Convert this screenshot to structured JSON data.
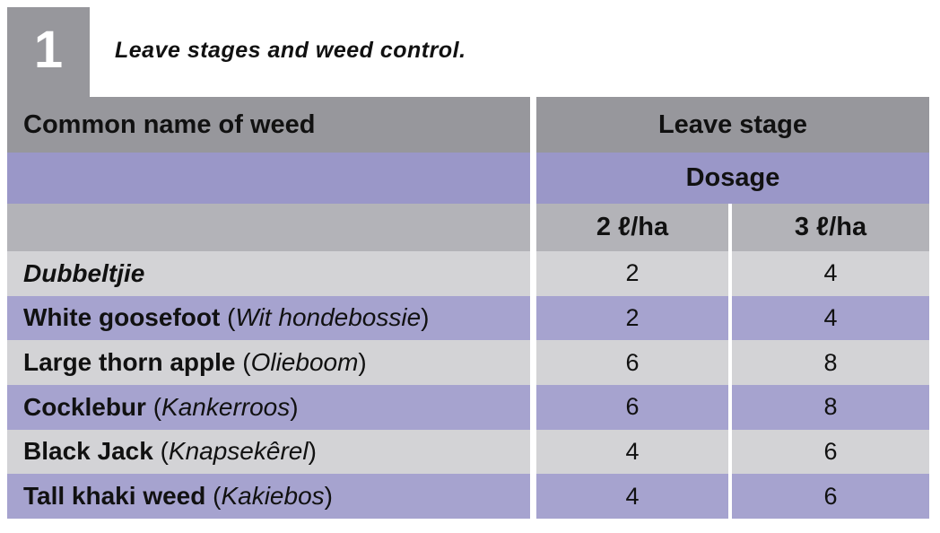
{
  "figure": {
    "number": "1",
    "title": "Leave stages and weed control."
  },
  "table": {
    "headers": {
      "weed_column": "Common name of weed",
      "leave_stage": "Leave stage",
      "dosage": "Dosage",
      "dose_low": "2 ℓ/ha",
      "dose_high": "3 ℓ/ha"
    },
    "rows": [
      {
        "common": "Dubbeltjie",
        "afrikaans": "",
        "dose_2l": "2",
        "dose_3l": "4"
      },
      {
        "common": "White goosefoot",
        "afrikaans": "Wit hondebossie",
        "dose_2l": "2",
        "dose_3l": "4"
      },
      {
        "common": "Large thorn apple",
        "afrikaans": "Olieboom",
        "dose_2l": "6",
        "dose_3l": "8"
      },
      {
        "common": "Cocklebur",
        "afrikaans": "Kankerroos",
        "dose_2l": "6",
        "dose_3l": "8"
      },
      {
        "common": "Black Jack",
        "afrikaans": "Knapsekêrel",
        "dose_2l": "4",
        "dose_3l": "6"
      },
      {
        "common": "Tall khaki weed",
        "afrikaans": "Kakiebos",
        "dose_2l": "4",
        "dose_3l": "6"
      }
    ]
  },
  "colors": {
    "header_gray": "#97979c",
    "dosage_purple": "#9a97c8",
    "units_gray": "#b3b3b8",
    "row_light_gray": "#d3d3d6",
    "row_purple": "#a6a3cf",
    "badge_text": "#ffffff",
    "text": "#111111",
    "background": "#ffffff"
  }
}
